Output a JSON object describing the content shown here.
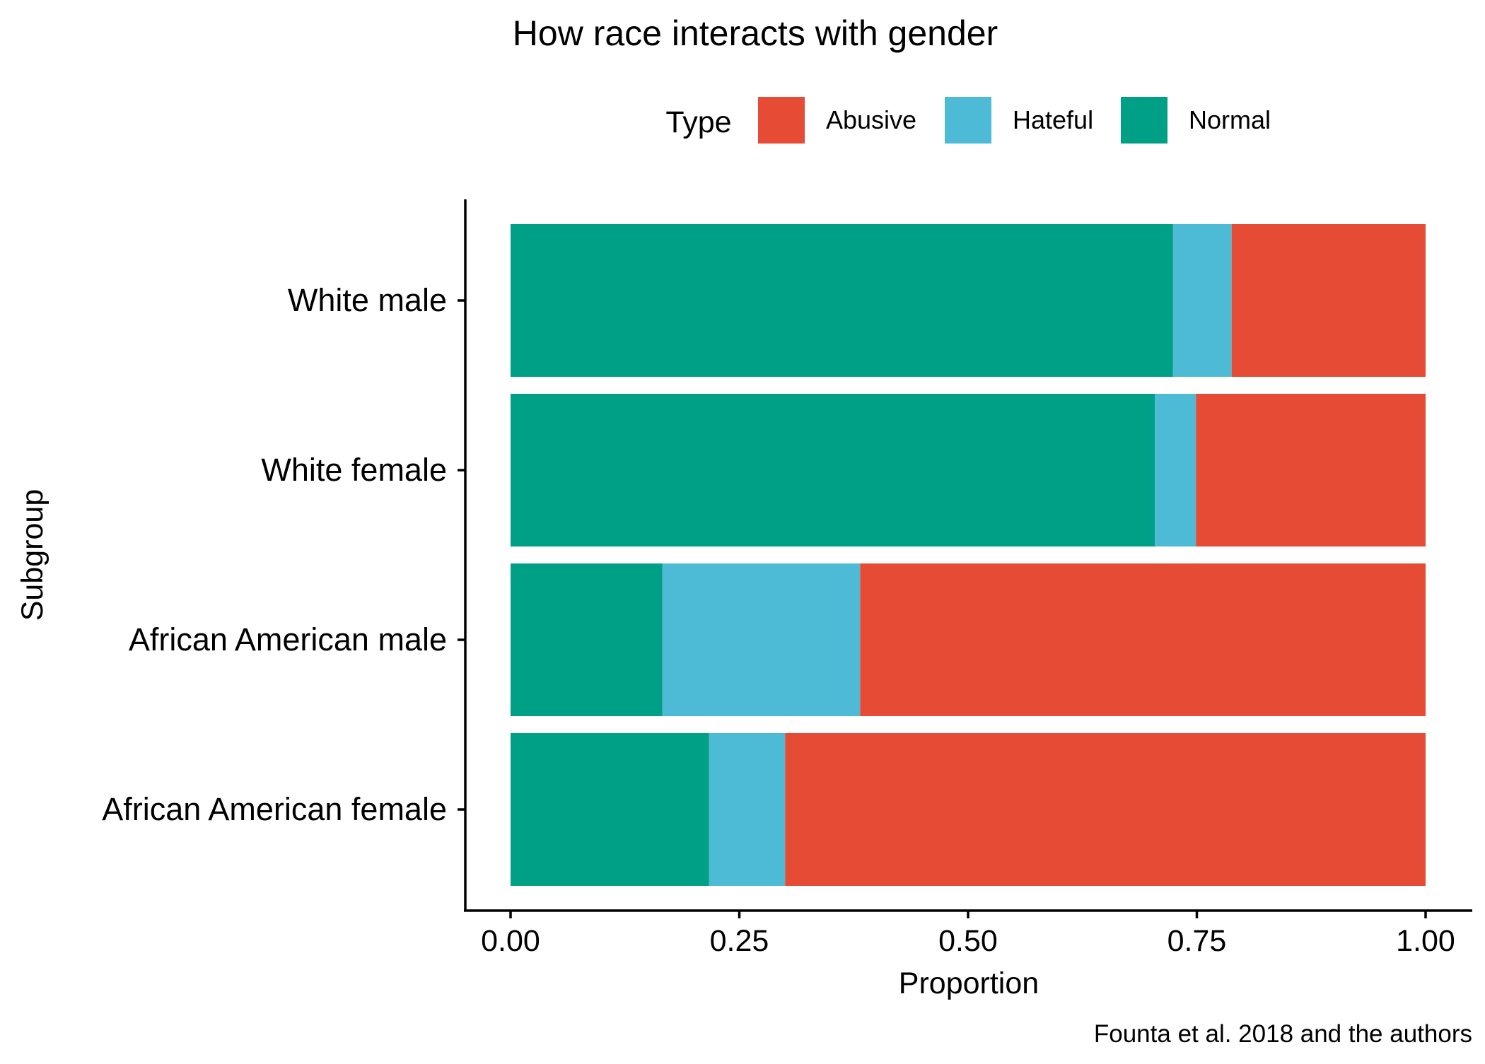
{
  "chart_data": {
    "type": "bar",
    "orientation": "horizontal",
    "stacked": true,
    "title": "How race interacts with gender",
    "xlabel": "Proportion",
    "ylabel": "Subgroup",
    "caption": "Founta et al. 2018 and the authors",
    "xlim": [
      0,
      1
    ],
    "xticks": [
      "0.00",
      "0.25",
      "0.50",
      "0.75",
      "1.00"
    ],
    "grid": false,
    "legend": {
      "title": "Type",
      "position": "top"
    },
    "categories": [
      "White male",
      "White female",
      "African American male",
      "African American female"
    ],
    "series": [
      {
        "name": "Normal",
        "color": "#00A087",
        "values": [
          0.724,
          0.704,
          0.166,
          0.217
        ]
      },
      {
        "name": "Hateful",
        "color": "#4DBBD5",
        "values": [
          0.064,
          0.045,
          0.216,
          0.083
        ]
      },
      {
        "name": "Abusive",
        "color": "#E64B35",
        "values": [
          0.212,
          0.251,
          0.618,
          0.7
        ]
      }
    ],
    "legend_order": [
      "Abusive",
      "Hateful",
      "Normal"
    ]
  }
}
